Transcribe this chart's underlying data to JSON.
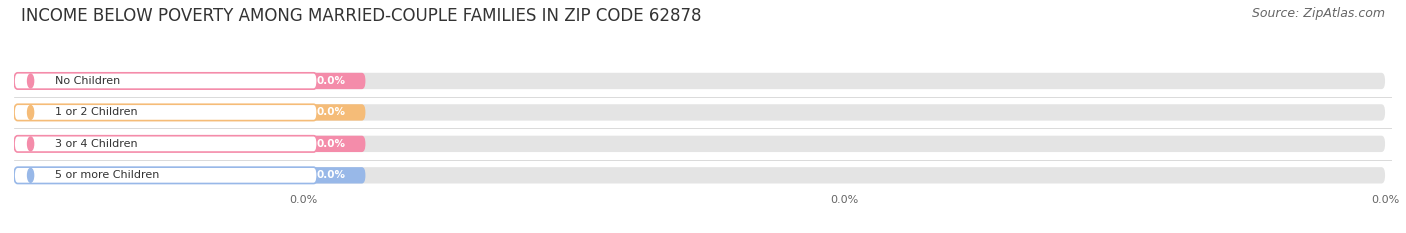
{
  "title": "INCOME BELOW POVERTY AMONG MARRIED-COUPLE FAMILIES IN ZIP CODE 62878",
  "source": "Source: ZipAtlas.com",
  "categories": [
    "No Children",
    "1 or 2 Children",
    "3 or 4 Children",
    "5 or more Children"
  ],
  "values": [
    0.0,
    0.0,
    0.0,
    0.0
  ],
  "bar_colors": [
    "#f48caa",
    "#f5bc78",
    "#f48caa",
    "#98b8e8"
  ],
  "bar_bg_color": "#e4e4e4",
  "title_fontsize": 12,
  "source_fontsize": 9,
  "background_color": "#ffffff",
  "tick_label": "0.0%",
  "label_bg": "#ffffff"
}
